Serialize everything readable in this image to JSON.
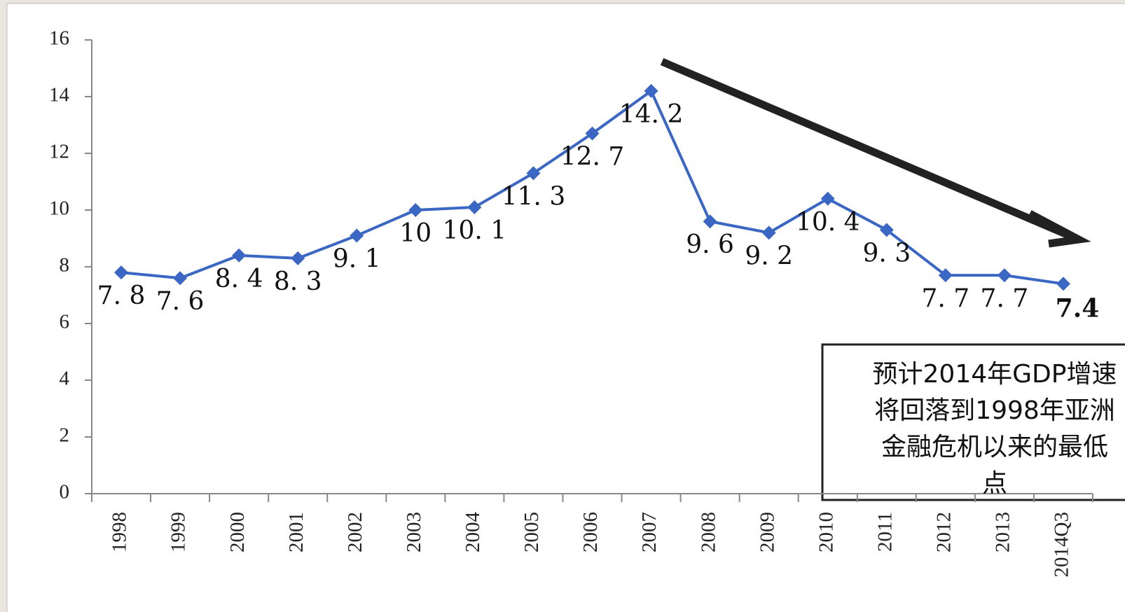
{
  "chart_data": {
    "type": "line",
    "categories": [
      "1998",
      "1999",
      "2000",
      "2001",
      "2002",
      "2003",
      "2004",
      "2005",
      "2006",
      "2007",
      "2008",
      "2009",
      "2010",
      "2011",
      "2012",
      "2013",
      "2014Q3"
    ],
    "series": [
      {
        "name": "GDP",
        "color": "#3a66c4",
        "values": [
          7.8,
          7.6,
          8.4,
          8.3,
          9.1,
          10,
          10.1,
          11.3,
          12.7,
          14.2,
          9.6,
          9.2,
          10.4,
          9.3,
          7.7,
          7.7,
          7.4
        ],
        "value_labels": [
          "7. 8",
          "7. 6",
          "8. 4",
          "8. 3",
          "9. 1",
          "10",
          "10. 1",
          "11. 3",
          "12. 7",
          "14. 2",
          "9. 6",
          "9. 2",
          "10. 4",
          "9. 3",
          "7. 7",
          "7. 7",
          "7.4"
        ]
      }
    ],
    "last_label_color": "#7a1a8c",
    "ylim": [
      0,
      16
    ],
    "yticks": [
      0,
      2,
      4,
      6,
      8,
      10,
      12,
      14,
      16
    ],
    "annotation": [
      "预计2014年GDP增速",
      "将回落到1998年亚洲",
      "金融危机以来的最低",
      "点"
    ]
  }
}
